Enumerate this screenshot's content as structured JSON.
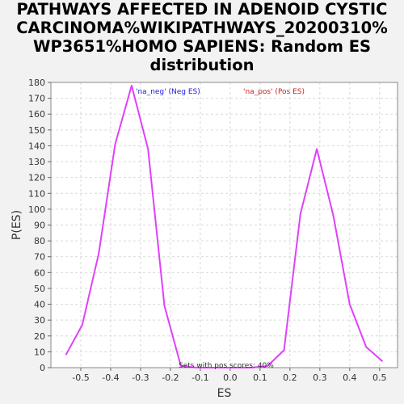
{
  "chart_data": {
    "type": "line",
    "title_lines": [
      "PATHWAYS AFFECTED IN ADENOID CYSTIC",
      "CARCINOMA%WIKIPATHWAYS_20200310%",
      "WP3651%HOMO SAPIENS: Random ES",
      "distribution"
    ],
    "xlabel": "ES",
    "ylabel": "P(ES)",
    "xlim": [
      -0.6,
      0.56
    ],
    "ylim": [
      0,
      180
    ],
    "x_ticks": [
      -0.5,
      -0.4,
      -0.3,
      -0.2,
      -0.1,
      0.0,
      0.1,
      0.2,
      0.3,
      0.4,
      0.5
    ],
    "x_tick_labels": [
      "-0.5",
      "-0.4",
      "-0.3",
      "-0.2",
      "-0.1",
      "0.0",
      "0.1",
      "0.2",
      "0.3",
      "0.4",
      "0.5"
    ],
    "y_ticks": [
      0,
      10,
      20,
      30,
      40,
      50,
      60,
      70,
      80,
      90,
      100,
      110,
      120,
      130,
      140,
      150,
      160,
      170,
      180
    ],
    "grid": true,
    "legend": [
      {
        "label": "'na_neg' (Neg ES)",
        "color": "#2222cc"
      },
      {
        "label": "'na_pos' (Pos ES)",
        "color": "#cc2222"
      }
    ],
    "series": [
      {
        "color": "#e040fb",
        "x": [
          -0.55,
          -0.495,
          -0.44,
          -0.385,
          -0.33,
          -0.275,
          -0.22,
          -0.165,
          -0.11,
          -0.055,
          0.0,
          0.07,
          0.125,
          0.18,
          0.235,
          0.29,
          0.345,
          0.4,
          0.455,
          0.51
        ],
        "y": [
          8,
          27,
          72,
          141,
          178,
          138,
          39,
          1,
          0,
          0,
          0,
          0,
          1,
          11,
          97,
          138,
          96,
          40,
          13,
          4
        ]
      }
    ],
    "annotation": "Sets with pos scores: 40%"
  }
}
